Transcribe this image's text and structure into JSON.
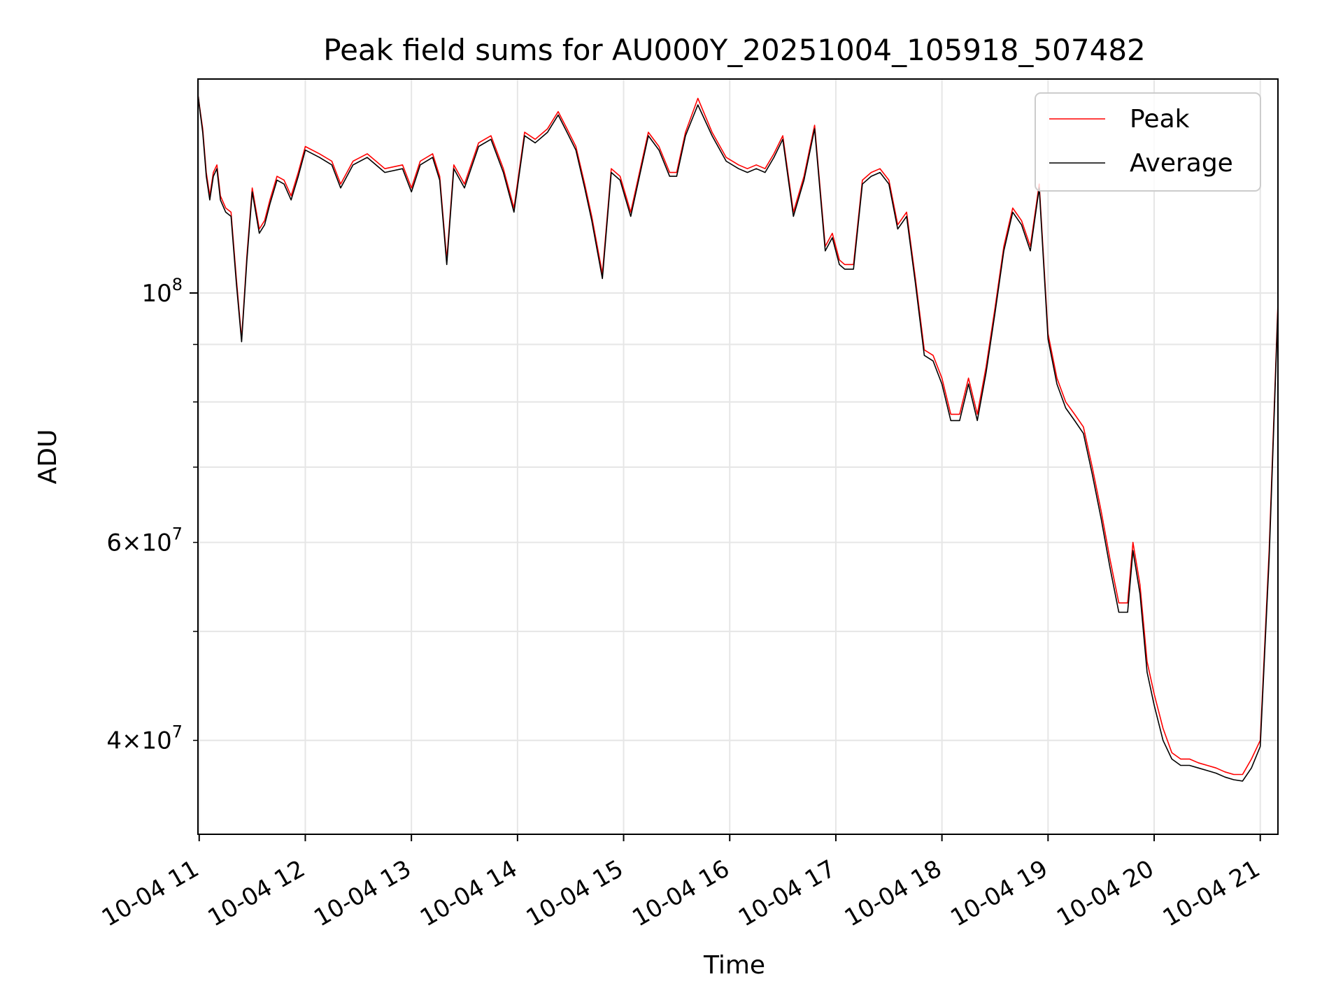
{
  "chart_data": {
    "type": "line",
    "title": "Peak field sums for AU000Y_20251004_105918_507482",
    "xlabel": "Time",
    "ylabel": "ADU",
    "yscale": "log",
    "ylim": [
      33000000,
      155000000
    ],
    "xlim": [
      "2025-10-04 10:59:18",
      "2025-10-04 21:10:00"
    ],
    "x_tick_labels": [
      "10-04 11",
      "10-04 12",
      "10-04 13",
      "10-04 14",
      "10-04 15",
      "10-04 16",
      "10-04 17",
      "10-04 18",
      "10-04 19",
      "10-04 20",
      "10-04 21"
    ],
    "x_ticks": [
      "2025-10-04 11:00",
      "2025-10-04 12:00",
      "2025-10-04 13:00",
      "2025-10-04 14:00",
      "2025-10-04 15:00",
      "2025-10-04 16:00",
      "2025-10-04 17:00",
      "2025-10-04 18:00",
      "2025-10-04 19:00",
      "2025-10-04 20:00",
      "2025-10-04 21:00"
    ],
    "y_major_ticks": [
      100000000
    ],
    "y_major_tick_labels": [
      {
        "base": "10",
        "exp": "8"
      }
    ],
    "y_minor_ticks": [
      40000000,
      50000000,
      60000000,
      70000000,
      80000000,
      90000000
    ],
    "y_minor_tick_labels": [
      {
        "value": 40000000,
        "mantissa": "4",
        "base": "10",
        "exp": "7"
      },
      {
        "value": 60000000,
        "mantissa": "6",
        "base": "10",
        "exp": "7"
      }
    ],
    "grid": true,
    "legend": {
      "position": "top-right"
    },
    "series": [
      {
        "name": "Peak",
        "color": "#ff0000",
        "x": [
          "2025-10-04 10:59:18",
          "2025-10-04 11:02",
          "2025-10-04 11:04",
          "2025-10-04 11:06",
          "2025-10-04 11:08",
          "2025-10-04 11:10",
          "2025-10-04 11:12",
          "2025-10-04 11:15",
          "2025-10-04 11:18",
          "2025-10-04 11:21",
          "2025-10-04 11:24",
          "2025-10-04 11:27",
          "2025-10-04 11:30",
          "2025-10-04 11:34",
          "2025-10-04 11:37",
          "2025-10-04 11:40",
          "2025-10-04 11:44",
          "2025-10-04 11:48",
          "2025-10-04 11:52",
          "2025-10-04 11:56",
          "2025-10-04 12:00",
          "2025-10-04 12:08",
          "2025-10-04 12:15",
          "2025-10-04 12:20",
          "2025-10-04 12:27",
          "2025-10-04 12:35",
          "2025-10-04 12:45",
          "2025-10-04 12:55",
          "2025-10-04 13:00",
          "2025-10-04 13:05",
          "2025-10-04 13:12",
          "2025-10-04 13:16",
          "2025-10-04 13:20",
          "2025-10-04 13:24",
          "2025-10-04 13:30",
          "2025-10-04 13:38",
          "2025-10-04 13:45",
          "2025-10-04 13:52",
          "2025-10-04 13:58",
          "2025-10-04 14:04",
          "2025-10-04 14:10",
          "2025-10-04 14:17",
          "2025-10-04 14:23",
          "2025-10-04 14:28",
          "2025-10-04 14:33",
          "2025-10-04 14:38",
          "2025-10-04 14:42",
          "2025-10-04 14:48",
          "2025-10-04 14:53",
          "2025-10-04 14:58",
          "2025-10-04 15:04",
          "2025-10-04 15:08",
          "2025-10-04 15:14",
          "2025-10-04 15:20",
          "2025-10-04 15:26",
          "2025-10-04 15:30",
          "2025-10-04 15:35",
          "2025-10-04 15:42",
          "2025-10-04 15:50",
          "2025-10-04 15:58",
          "2025-10-04 16:05",
          "2025-10-04 16:10",
          "2025-10-04 16:15",
          "2025-10-04 16:20",
          "2025-10-04 16:25",
          "2025-10-04 16:30",
          "2025-10-04 16:36",
          "2025-10-04 16:42",
          "2025-10-04 16:48",
          "2025-10-04 16:54",
          "2025-10-04 16:58",
          "2025-10-04 17:02",
          "2025-10-04 17:05",
          "2025-10-04 17:10",
          "2025-10-04 17:15",
          "2025-10-04 17:20",
          "2025-10-04 17:25",
          "2025-10-04 17:30",
          "2025-10-04 17:35",
          "2025-10-04 17:40",
          "2025-10-04 17:45",
          "2025-10-04 17:50",
          "2025-10-04 17:55",
          "2025-10-04 18:00",
          "2025-10-04 18:05",
          "2025-10-04 18:10",
          "2025-10-04 18:15",
          "2025-10-04 18:20",
          "2025-10-04 18:25",
          "2025-10-04 18:30",
          "2025-10-04 18:35",
          "2025-10-04 18:40",
          "2025-10-04 18:45",
          "2025-10-04 18:50",
          "2025-10-04 18:55",
          "2025-10-04 19:00",
          "2025-10-04 19:05",
          "2025-10-04 19:10",
          "2025-10-04 19:15",
          "2025-10-04 19:20",
          "2025-10-04 19:25",
          "2025-10-04 19:30",
          "2025-10-04 19:35",
          "2025-10-04 19:40",
          "2025-10-04 19:45",
          "2025-10-04 19:48",
          "2025-10-04 19:52",
          "2025-10-04 19:56",
          "2025-10-04 20:00",
          "2025-10-04 20:05",
          "2025-10-04 20:10",
          "2025-10-04 20:15",
          "2025-10-04 20:20",
          "2025-10-04 20:25",
          "2025-10-04 20:30",
          "2025-10-04 20:35",
          "2025-10-04 20:40",
          "2025-10-04 20:45",
          "2025-10-04 20:50",
          "2025-10-04 20:55",
          "2025-10-04 21:00",
          "2025-10-04 21:05",
          "2025-10-04 21:10"
        ],
        "y": [
          150000000,
          140000000,
          128000000,
          122000000,
          128000000,
          130000000,
          122000000,
          119000000,
          118000000,
          103000000,
          91000000,
          108000000,
          124000000,
          114000000,
          116000000,
          121000000,
          127000000,
          126000000,
          122000000,
          128000000,
          135000000,
          133000000,
          131000000,
          125000000,
          131000000,
          133000000,
          129000000,
          130000000,
          124000000,
          131000000,
          133000000,
          127000000,
          107000000,
          130000000,
          125000000,
          136000000,
          138000000,
          129000000,
          119000000,
          139000000,
          137000000,
          140000000,
          145000000,
          140000000,
          135000000,
          125000000,
          117000000,
          104000000,
          129000000,
          127000000,
          118000000,
          126000000,
          139000000,
          135000000,
          128000000,
          128000000,
          139000000,
          149000000,
          139000000,
          132000000,
          130000000,
          129000000,
          130000000,
          129000000,
          133000000,
          138000000,
          118000000,
          127000000,
          141000000,
          110000000,
          113000000,
          107000000,
          106000000,
          106000000,
          126000000,
          128000000,
          129000000,
          126000000,
          115000000,
          118000000,
          103000000,
          89000000,
          88000000,
          84000000,
          78000000,
          78000000,
          84000000,
          78000000,
          86000000,
          97000000,
          110000000,
          119000000,
          116000000,
          110000000,
          125000000,
          92000000,
          84000000,
          80000000,
          78000000,
          76000000,
          70000000,
          64000000,
          58000000,
          53000000,
          53000000,
          60000000,
          55000000,
          47000000,
          44000000,
          41000000,
          39000000,
          38500000,
          38500000,
          38200000,
          38000000,
          37800000,
          37500000,
          37300000,
          37300000,
          38500000,
          40000000,
          59000000,
          98000000
        ]
      },
      {
        "name": "Average",
        "color": "#000000",
        "x": [
          "2025-10-04 10:59:18",
          "2025-10-04 11:02",
          "2025-10-04 11:04",
          "2025-10-04 11:06",
          "2025-10-04 11:08",
          "2025-10-04 11:10",
          "2025-10-04 11:12",
          "2025-10-04 11:15",
          "2025-10-04 11:18",
          "2025-10-04 11:21",
          "2025-10-04 11:24",
          "2025-10-04 11:27",
          "2025-10-04 11:30",
          "2025-10-04 11:34",
          "2025-10-04 11:37",
          "2025-10-04 11:40",
          "2025-10-04 11:44",
          "2025-10-04 11:48",
          "2025-10-04 11:52",
          "2025-10-04 11:56",
          "2025-10-04 12:00",
          "2025-10-04 12:08",
          "2025-10-04 12:15",
          "2025-10-04 12:20",
          "2025-10-04 12:27",
          "2025-10-04 12:35",
          "2025-10-04 12:45",
          "2025-10-04 12:55",
          "2025-10-04 13:00",
          "2025-10-04 13:05",
          "2025-10-04 13:12",
          "2025-10-04 13:16",
          "2025-10-04 13:20",
          "2025-10-04 13:24",
          "2025-10-04 13:30",
          "2025-10-04 13:38",
          "2025-10-04 13:45",
          "2025-10-04 13:52",
          "2025-10-04 13:58",
          "2025-10-04 14:04",
          "2025-10-04 14:10",
          "2025-10-04 14:17",
          "2025-10-04 14:23",
          "2025-10-04 14:28",
          "2025-10-04 14:33",
          "2025-10-04 14:38",
          "2025-10-04 14:42",
          "2025-10-04 14:48",
          "2025-10-04 14:53",
          "2025-10-04 14:58",
          "2025-10-04 15:04",
          "2025-10-04 15:08",
          "2025-10-04 15:14",
          "2025-10-04 15:20",
          "2025-10-04 15:26",
          "2025-10-04 15:30",
          "2025-10-04 15:35",
          "2025-10-04 15:42",
          "2025-10-04 15:50",
          "2025-10-04 15:58",
          "2025-10-04 16:05",
          "2025-10-04 16:10",
          "2025-10-04 16:15",
          "2025-10-04 16:20",
          "2025-10-04 16:25",
          "2025-10-04 16:30",
          "2025-10-04 16:36",
          "2025-10-04 16:42",
          "2025-10-04 16:48",
          "2025-10-04 16:54",
          "2025-10-04 16:58",
          "2025-10-04 17:02",
          "2025-10-04 17:05",
          "2025-10-04 17:10",
          "2025-10-04 17:15",
          "2025-10-04 17:20",
          "2025-10-04 17:25",
          "2025-10-04 17:30",
          "2025-10-04 17:35",
          "2025-10-04 17:40",
          "2025-10-04 17:45",
          "2025-10-04 17:50",
          "2025-10-04 17:55",
          "2025-10-04 18:00",
          "2025-10-04 18:05",
          "2025-10-04 18:10",
          "2025-10-04 18:15",
          "2025-10-04 18:20",
          "2025-10-04 18:25",
          "2025-10-04 18:30",
          "2025-10-04 18:35",
          "2025-10-04 18:40",
          "2025-10-04 18:45",
          "2025-10-04 18:50",
          "2025-10-04 18:55",
          "2025-10-04 19:00",
          "2025-10-04 19:05",
          "2025-10-04 19:10",
          "2025-10-04 19:15",
          "2025-10-04 19:20",
          "2025-10-04 19:25",
          "2025-10-04 19:30",
          "2025-10-04 19:35",
          "2025-10-04 19:40",
          "2025-10-04 19:45",
          "2025-10-04 19:48",
          "2025-10-04 19:52",
          "2025-10-04 19:56",
          "2025-10-04 20:00",
          "2025-10-04 20:05",
          "2025-10-04 20:10",
          "2025-10-04 20:15",
          "2025-10-04 20:20",
          "2025-10-04 20:25",
          "2025-10-04 20:30",
          "2025-10-04 20:35",
          "2025-10-04 20:40",
          "2025-10-04 20:45",
          "2025-10-04 20:50",
          "2025-10-04 20:55",
          "2025-10-04 21:00",
          "2025-10-04 21:05",
          "2025-10-04 21:10"
        ],
        "y": [
          150000000,
          139000000,
          127000000,
          121000000,
          127000000,
          129000000,
          121000000,
          118000000,
          117000000,
          102000000,
          90500000,
          107000000,
          123000000,
          113000000,
          115000000,
          120000000,
          126000000,
          125000000,
          121000000,
          127000000,
          134000000,
          132000000,
          130000000,
          124000000,
          130000000,
          132000000,
          128000000,
          129000000,
          123000000,
          130000000,
          132000000,
          126000000,
          106000000,
          129000000,
          124000000,
          135000000,
          137000000,
          128000000,
          118000000,
          138000000,
          136000000,
          139000000,
          144000000,
          139000000,
          134000000,
          124000000,
          116000000,
          103000000,
          128000000,
          126000000,
          117000000,
          125000000,
          138000000,
          134000000,
          127000000,
          127000000,
          138000000,
          147000000,
          138000000,
          131000000,
          129000000,
          128000000,
          129000000,
          128000000,
          132000000,
          137000000,
          117000000,
          126000000,
          140000000,
          109000000,
          112000000,
          106000000,
          105000000,
          105000000,
          125000000,
          127000000,
          128000000,
          125000000,
          114000000,
          117000000,
          102000000,
          88000000,
          87000000,
          83000000,
          77000000,
          77000000,
          83000000,
          77000000,
          85000000,
          96000000,
          109000000,
          118000000,
          115000000,
          109000000,
          124000000,
          91000000,
          83000000,
          79000000,
          77000000,
          75000000,
          69000000,
          63000000,
          57000000,
          52000000,
          52000000,
          59000000,
          54000000,
          46000000,
          43000000,
          40000000,
          38500000,
          38000000,
          38000000,
          37800000,
          37600000,
          37400000,
          37100000,
          36900000,
          36800000,
          37800000,
          39500000,
          58000000,
          97000000
        ]
      }
    ]
  }
}
